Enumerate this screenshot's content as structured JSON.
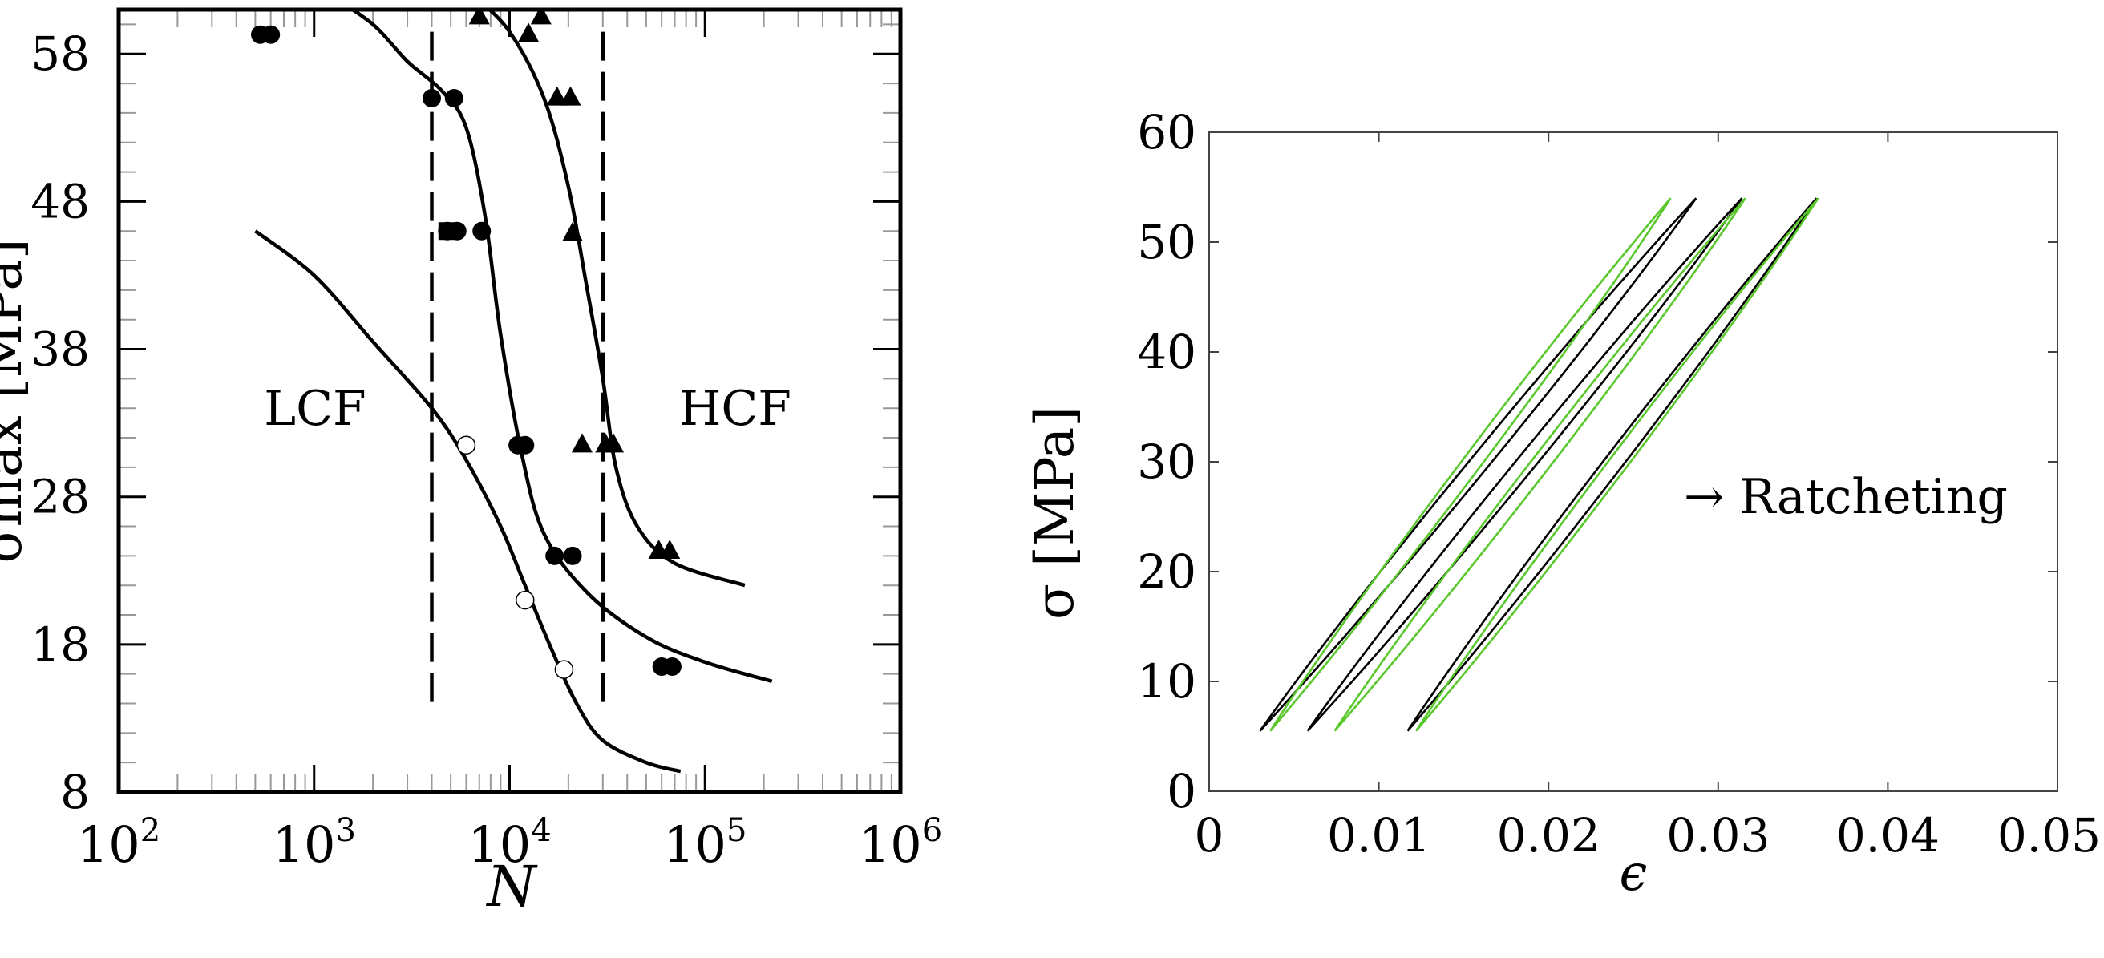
{
  "chart_data": [
    {
      "type": "scatter",
      "title": "",
      "xlabel": "N",
      "ylabel": "σmax [MPa]",
      "xscale": "log",
      "xlim": [
        100,
        1000000
      ],
      "ylim": [
        8,
        61
      ],
      "x_ticks": [
        {
          "v": 100,
          "base": "10",
          "exp": "2"
        },
        {
          "v": 1000,
          "base": "10",
          "exp": "3"
        },
        {
          "v": 10000,
          "base": "10",
          "exp": "4"
        },
        {
          "v": 100000,
          "base": "10",
          "exp": "5"
        },
        {
          "v": 1000000,
          "base": "10",
          "exp": "6"
        }
      ],
      "y_ticks": [
        8,
        18,
        28,
        38,
        48,
        58
      ],
      "annotations": {
        "lcf": "LCF",
        "hcf": "HCF"
      },
      "regime_boundaries": [
        4000,
        30000
      ],
      "regime_boundary_range": [
        13.5,
        59.5
      ],
      "series": [
        {
          "name": "circles",
          "marker": "circle-filled",
          "points": [
            [
              530,
              59.3
            ],
            [
              600,
              59.3
            ],
            [
              4000,
              55
            ],
            [
              5200,
              55
            ],
            [
              4800,
              46
            ],
            [
              5400,
              46
            ],
            [
              7200,
              46
            ],
            [
              11000,
              31.5
            ],
            [
              12000,
              31.5
            ],
            [
              17000,
              24
            ],
            [
              21000,
              24
            ],
            [
              60000,
              16.5
            ],
            [
              68000,
              16.5
            ]
          ]
        },
        {
          "name": "squares",
          "marker": "square-filled",
          "points": [
            [
              4800,
              46
            ]
          ]
        },
        {
          "name": "triangles",
          "marker": "triangle-filled",
          "points": [
            [
              7000,
              60.5
            ],
            [
              12500,
              59.3
            ],
            [
              14500,
              60.5
            ],
            [
              17500,
              55
            ],
            [
              20500,
              55
            ],
            [
              21000,
              45.8
            ],
            [
              23500,
              31.5
            ],
            [
              31000,
              31.5
            ],
            [
              34000,
              31.5
            ],
            [
              58000,
              24.3
            ],
            [
              66000,
              24.3
            ]
          ]
        },
        {
          "name": "open circles",
          "marker": "circle-open",
          "points": [
            [
              6000,
              31.5
            ],
            [
              12000,
              21
            ],
            [
              19000,
              16.3
            ]
          ]
        }
      ],
      "curves": [
        {
          "name": "fit-triangles",
          "points": [
            [
              6500,
              62
            ],
            [
              10000,
              59.5
            ],
            [
              15000,
              55
            ],
            [
              20000,
              49
            ],
            [
              25000,
              42
            ],
            [
              30000,
              36
            ],
            [
              35000,
              30
            ],
            [
              45000,
              26
            ],
            [
              70000,
              23.5
            ],
            [
              160000,
              22
            ]
          ]
        },
        {
          "name": "fit-circles",
          "points": [
            [
              1200,
              62
            ],
            [
              2000,
              60
            ],
            [
              3000,
              57.5
            ],
            [
              4500,
              55.5
            ],
            [
              6000,
              53
            ],
            [
              7500,
              47
            ],
            [
              9000,
              39
            ],
            [
              11500,
              31
            ],
            [
              15000,
              25.5
            ],
            [
              25000,
              21.5
            ],
            [
              50000,
              18.5
            ],
            [
              100000,
              16.8
            ],
            [
              220000,
              15.5
            ]
          ]
        },
        {
          "name": "fit-open",
          "points": [
            [
              500,
              46
            ],
            [
              1000,
              43
            ],
            [
              2000,
              38.5
            ],
            [
              4000,
              34
            ],
            [
              6000,
              30.5
            ],
            [
              9000,
              26
            ],
            [
              12000,
              22
            ],
            [
              16000,
              18
            ],
            [
              22000,
              14
            ],
            [
              30000,
              11.5
            ],
            [
              50000,
              10
            ],
            [
              75000,
              9.4
            ]
          ]
        }
      ]
    },
    {
      "type": "line",
      "title": "",
      "xlabel": "ϵ",
      "ylabel": "σ [MPa]",
      "xlim": [
        0,
        0.05
      ],
      "ylim": [
        0,
        60
      ],
      "x_ticks": [
        0,
        0.01,
        0.02,
        0.03,
        0.04,
        0.05
      ],
      "x_tick_labels": [
        "0",
        "0.01",
        "0.02",
        "0.03",
        "0.04",
        "0.05"
      ],
      "y_ticks": [
        0,
        10,
        20,
        30,
        40,
        50,
        60
      ],
      "annotation": "→ Ratcheting",
      "loops": [
        {
          "series": "black",
          "color": "#000000",
          "x_start": 0.003,
          "x_peak": 0.0287,
          "sigma_min": 5.5,
          "sigma_max": 54
        },
        {
          "series": "black",
          "color": "#000000",
          "x_start": 0.0058,
          "x_peak": 0.0314,
          "sigma_min": 5.5,
          "sigma_max": 54
        },
        {
          "series": "black",
          "color": "#000000",
          "x_start": 0.0117,
          "x_peak": 0.0358,
          "sigma_min": 5.5,
          "sigma_max": 54
        },
        {
          "series": "green",
          "color": "#5ac82d",
          "x_start": 0.0036,
          "x_peak": 0.0272,
          "sigma_min": 5.5,
          "sigma_max": 54
        },
        {
          "series": "green",
          "color": "#5ac82d",
          "x_start": 0.0074,
          "x_peak": 0.0316,
          "sigma_min": 5.5,
          "sigma_max": 54
        },
        {
          "series": "green",
          "color": "#5ac82d",
          "x_start": 0.0122,
          "x_peak": 0.0359,
          "sigma_min": 5.5,
          "sigma_max": 54
        }
      ]
    }
  ]
}
